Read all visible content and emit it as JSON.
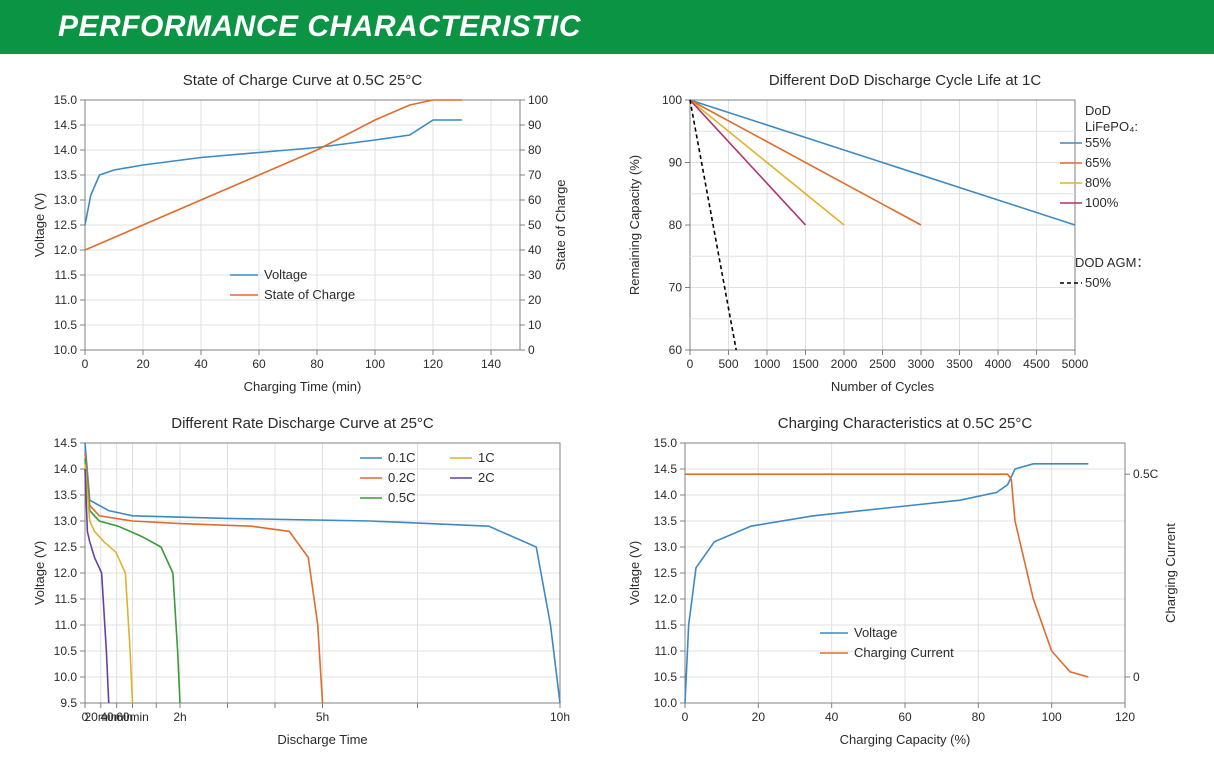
{
  "header": {
    "title": "PERFORMANCE CHARACTERISTIC"
  },
  "colors": {
    "header_bg": "#0b9444",
    "header_text": "#ffffff",
    "axis": "#808080",
    "grid": "#e0e0e0",
    "text": "#2b2b2b",
    "blue": "#3b8ac4",
    "orange": "#e06c2c",
    "yellow": "#e0b22c",
    "magenta": "#b03070",
    "green": "#3a9a3a",
    "purple": "#6a3f9a",
    "black": "#000000"
  },
  "chart1": {
    "title": "State of Charge Curve at 0.5C 25°C",
    "xlabel": "Charging Time (min)",
    "ylabel_left": "Voltage (V)",
    "ylabel_right": "State of Charge",
    "xlim": [
      0,
      150
    ],
    "xtick_step": 20,
    "ylim_left": [
      10.0,
      15.0
    ],
    "ytick_left_step": 0.5,
    "ylim_right": [
      0,
      100
    ],
    "ytick_right_step": 10,
    "series": [
      {
        "name": "Voltage",
        "color": "#3b8ac4",
        "axis": "left",
        "x": [
          0,
          2,
          5,
          10,
          20,
          40,
          60,
          80,
          100,
          112,
          120,
          130
        ],
        "y": [
          12.5,
          13.1,
          13.5,
          13.6,
          13.7,
          13.85,
          13.95,
          14.05,
          14.2,
          14.3,
          14.6,
          14.6
        ]
      },
      {
        "name": "State of Charge",
        "color": "#e06c2c",
        "axis": "right",
        "x": [
          0,
          20,
          40,
          60,
          80,
          100,
          112,
          120,
          130
        ],
        "y": [
          40,
          50,
          60,
          70,
          80,
          92,
          98,
          100,
          100
        ]
      }
    ],
    "legend": [
      "Voltage",
      "State of Charge"
    ]
  },
  "chart2": {
    "title": "Different DoD Discharge Cycle Life at 1C",
    "xlabel": "Number of Cycles",
    "ylabel": "Remaining Capacity (%)",
    "xlim": [
      0,
      5000
    ],
    "xtick_step": 500,
    "ylim": [
      60,
      100
    ],
    "ytick_step": 10,
    "yminor_step": 5,
    "legend_title1": "DoD LiFePO₄:",
    "legend_title2": "DOD AGM：",
    "series": [
      {
        "name": "55%",
        "color": "#3b8ac4",
        "x": [
          0,
          5000
        ],
        "y": [
          100,
          80
        ],
        "dash": false
      },
      {
        "name": "65%",
        "color": "#e06c2c",
        "x": [
          0,
          3000
        ],
        "y": [
          100,
          80
        ],
        "dash": false
      },
      {
        "name": "80%",
        "color": "#e0b22c",
        "x": [
          0,
          2000
        ],
        "y": [
          100,
          80
        ],
        "dash": false
      },
      {
        "name": "100%",
        "color": "#b03070",
        "x": [
          0,
          1500
        ],
        "y": [
          100,
          80
        ],
        "dash": false
      },
      {
        "name": "50%",
        "color": "#000000",
        "x": [
          0,
          300,
          600
        ],
        "y": [
          100,
          80,
          60
        ],
        "dash": true
      }
    ]
  },
  "chart3": {
    "title": "Different Rate Discharge Curve at 25°C",
    "xlabel": "Discharge Time",
    "ylabel": "Voltage (V)",
    "xlim": [
      0,
      10
    ],
    "xticks_labels": [
      "0",
      "20min",
      "40min",
      "60min",
      "",
      "2h",
      "",
      "",
      "5h",
      "",
      "10h"
    ],
    "xticks_pos": [
      0,
      0.333,
      0.667,
      1,
      1.5,
      2,
      3,
      4,
      5,
      7,
      10
    ],
    "ylim": [
      9.5,
      14.5
    ],
    "ytick_step": 0.5,
    "legend": [
      {
        "name": "0.1C",
        "color": "#3b8ac4"
      },
      {
        "name": "1C",
        "color": "#e0b22c"
      },
      {
        "name": "0.2C",
        "color": "#e06c2c"
      },
      {
        "name": "2C",
        "color": "#6a3f9a"
      },
      {
        "name": "0.5C",
        "color": "#3a9a3a"
      }
    ],
    "series": [
      {
        "name": "0.1C",
        "color": "#3b8ac4",
        "x": [
          0,
          0.1,
          0.5,
          1,
          3,
          6,
          8.5,
          9.5,
          9.8,
          10
        ],
        "y": [
          14.5,
          13.4,
          13.2,
          13.1,
          13.05,
          13.0,
          12.9,
          12.5,
          11.0,
          9.5
        ]
      },
      {
        "name": "0.2C",
        "color": "#e06c2c",
        "x": [
          0,
          0.1,
          0.3,
          1,
          2,
          3.5,
          4.3,
          4.7,
          4.9,
          5
        ],
        "y": [
          14.3,
          13.3,
          13.1,
          13.0,
          12.95,
          12.9,
          12.8,
          12.3,
          11.0,
          9.5
        ]
      },
      {
        "name": "0.5C",
        "color": "#3a9a3a",
        "x": [
          0,
          0.1,
          0.3,
          0.7,
          1.2,
          1.6,
          1.85,
          1.95,
          2
        ],
        "y": [
          14.2,
          13.2,
          13.0,
          12.9,
          12.7,
          12.5,
          12.0,
          10.5,
          9.5
        ]
      },
      {
        "name": "1C",
        "color": "#e0b22c",
        "x": [
          0,
          0.1,
          0.2,
          0.4,
          0.65,
          0.85,
          0.95,
          1.0
        ],
        "y": [
          14.1,
          13.0,
          12.8,
          12.6,
          12.4,
          12.0,
          10.5,
          9.5
        ]
      },
      {
        "name": "2C",
        "color": "#6a3f9a",
        "x": [
          0,
          0.05,
          0.1,
          0.2,
          0.35,
          0.45,
          0.5
        ],
        "y": [
          14.0,
          12.8,
          12.6,
          12.3,
          12.0,
          10.5,
          9.5
        ]
      }
    ]
  },
  "chart4": {
    "title": "Charging Characteristics at 0.5C 25°C",
    "xlabel": "Charging Capacity (%)",
    "ylabel_left": "Voltage (V)",
    "ylabel_right": "Charging Current",
    "xlim": [
      0,
      120
    ],
    "xtick_step": 20,
    "ylim_left": [
      10.0,
      15.0
    ],
    "ytick_left_step": 0.5,
    "right_tick_labels": [
      "0.5C",
      "0"
    ],
    "right_tick_y": [
      14.4,
      10.5
    ],
    "series": [
      {
        "name": "Voltage",
        "color": "#3b8ac4",
        "x": [
          0,
          1,
          3,
          8,
          18,
          35,
          55,
          75,
          85,
          88,
          90,
          95,
          110
        ],
        "y": [
          10.0,
          11.5,
          12.6,
          13.1,
          13.4,
          13.6,
          13.75,
          13.9,
          14.05,
          14.2,
          14.5,
          14.6,
          14.6
        ]
      },
      {
        "name": "Charging Current",
        "color": "#e06c2c",
        "x": [
          0,
          88,
          89,
          90,
          95,
          100,
          105,
          110
        ],
        "y": [
          14.4,
          14.4,
          14.3,
          13.5,
          12.0,
          11.0,
          10.6,
          10.5
        ]
      }
    ],
    "legend": [
      "Voltage",
      "Charging Current"
    ]
  }
}
